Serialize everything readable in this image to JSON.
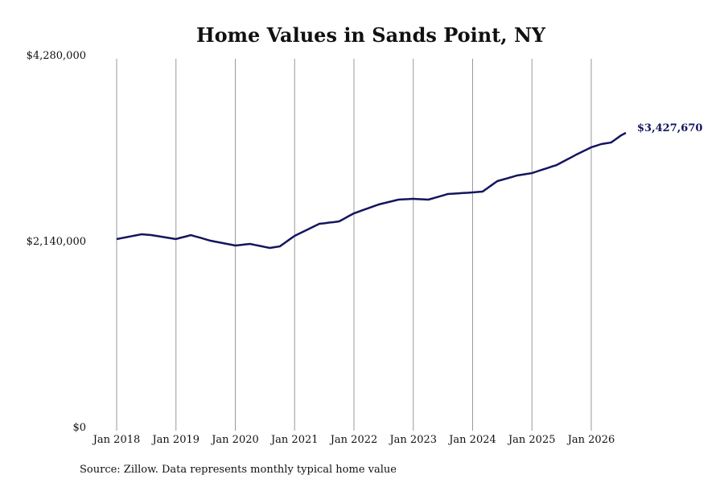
{
  "chart_data": {
    "type": "line",
    "title": "Home Values in Sands Point, NY",
    "source": "Source: Zillow. Data represents monthly typical home value",
    "color": "#15155e",
    "x_grid": true,
    "categories": [
      "Jan 2018",
      null,
      null,
      null,
      null,
      null,
      null,
      null,
      null,
      null,
      null,
      null,
      "Jan 2019",
      null,
      null,
      null,
      null,
      null,
      null,
      null,
      null,
      null,
      null,
      null,
      "Jan 2020",
      null,
      null,
      null,
      null,
      null,
      null,
      null,
      null,
      null,
      null,
      null,
      "Jan 2021",
      null,
      null,
      null,
      null,
      null,
      null,
      null,
      null,
      null,
      null,
      null,
      "Jan 2022",
      null,
      null,
      null,
      null,
      null,
      null,
      null,
      null,
      null,
      null,
      null,
      "Jan 2023",
      null,
      null,
      null,
      null,
      null,
      null,
      null,
      null,
      null,
      null,
      null,
      "Jan 2024",
      null,
      null,
      null,
      null,
      null,
      null,
      null,
      null,
      null,
      null,
      null,
      "Jan 2025",
      null,
      null,
      null,
      null,
      null,
      null,
      null,
      null,
      null,
      null,
      null,
      "Jan 2026",
      null,
      null,
      null,
      null,
      null,
      null,
      null
    ],
    "values": [
      2205000,
      2216000,
      2227000,
      2238000,
      2249000,
      2260000,
      2256000,
      2251000,
      2242000,
      2233000,
      2223000,
      2214000,
      2205000,
      2221000,
      2235000,
      2251000,
      2234000,
      2219000,
      2202000,
      2186000,
      2175000,
      2164000,
      2153000,
      2142000,
      2131000,
      2137000,
      2143000,
      2149000,
      2137000,
      2126000,
      2114000,
      2103000,
      2112000,
      2121000,
      2161000,
      2202000,
      2242000,
      2270000,
      2297000,
      2325000,
      2353000,
      2381000,
      2387000,
      2395000,
      2401000,
      2409000,
      2439000,
      2471000,
      2501000,
      2522000,
      2542000,
      2562000,
      2583000,
      2603000,
      2617000,
      2631000,
      2645000,
      2659000,
      2662000,
      2665000,
      2668000,
      2665000,
      2662000,
      2659000,
      2674000,
      2691000,
      2707000,
      2724000,
      2727000,
      2731000,
      2735000,
      2738000,
      2742000,
      2747000,
      2751000,
      2791000,
      2832000,
      2872000,
      2888000,
      2904000,
      2920000,
      2937000,
      2946000,
      2955000,
      2964000,
      2983000,
      3002000,
      3020000,
      3039000,
      3057000,
      3087000,
      3117000,
      3147000,
      3178000,
      3205000,
      3233000,
      3261000,
      3279000,
      3298000,
      3307000,
      3316000,
      3356000,
      3397000,
      3427670
    ],
    "value_labels": [
      null,
      null,
      null,
      null,
      null,
      null,
      null,
      null,
      null,
      null,
      null,
      null,
      null,
      null,
      null,
      null,
      null,
      null,
      null,
      null,
      null,
      null,
      null,
      null,
      null,
      null,
      null,
      null,
      null,
      null,
      null,
      null,
      null,
      null,
      null,
      null,
      null,
      null,
      null,
      null,
      null,
      null,
      null,
      null,
      null,
      null,
      null,
      null,
      null,
      null,
      null,
      null,
      null,
      null,
      null,
      null,
      null,
      null,
      null,
      null,
      null,
      null,
      null,
      null,
      null,
      null,
      null,
      null,
      null,
      null,
      null,
      null,
      null,
      null,
      null,
      null,
      null,
      null,
      null,
      null,
      null,
      null,
      null,
      null,
      null,
      null,
      null,
      null,
      null,
      null,
      null,
      null,
      null,
      null,
      null,
      null,
      null,
      null,
      null,
      null,
      null,
      null,
      null,
      "$3,427,670"
    ],
    "ylim": [
      0,
      4280000
    ],
    "yticks": [
      {
        "value": 0,
        "label": "$0"
      },
      {
        "value": 2140000,
        "label": "$2,140,000"
      },
      {
        "value": 4280000,
        "label": "$4,280,000"
      }
    ]
  }
}
